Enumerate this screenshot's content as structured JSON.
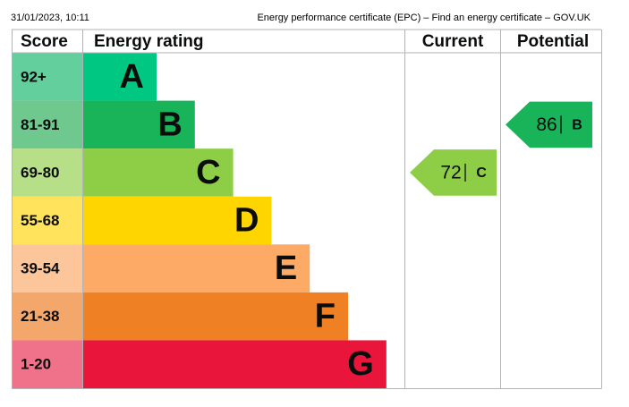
{
  "header": {
    "timestamp": "31/01/2023, 10:11",
    "page_title": "Energy performance certificate (EPC) – Find an energy certificate – GOV.UK"
  },
  "table": {
    "columns": [
      "Score",
      "Energy rating",
      "Current",
      "Potential"
    ],
    "bands": [
      {
        "score": "92+",
        "rating": "A",
        "color": "#00c781",
        "score_color": "#63cf9c"
      },
      {
        "score": "81-91",
        "rating": "B",
        "color": "#19b459",
        "score_color": "#6fc88d"
      },
      {
        "score": "69-80",
        "rating": "C",
        "color": "#8dce46",
        "score_color": "#b6df88"
      },
      {
        "score": "55-68",
        "rating": "D",
        "color": "#ffd500",
        "score_color": "#ffe35c"
      },
      {
        "score": "39-54",
        "rating": "E",
        "color": "#fcaa65",
        "score_color": "#fdc59a"
      },
      {
        "score": "21-38",
        "rating": "F",
        "color": "#ef8023",
        "score_color": "#f4a76a"
      },
      {
        "score": "1-20",
        "rating": "G",
        "color": "#e9153b",
        "score_color": "#f0728a"
      }
    ],
    "current": {
      "value": 72,
      "rating": "C"
    },
    "potential": {
      "value": 86,
      "rating": "B"
    }
  }
}
